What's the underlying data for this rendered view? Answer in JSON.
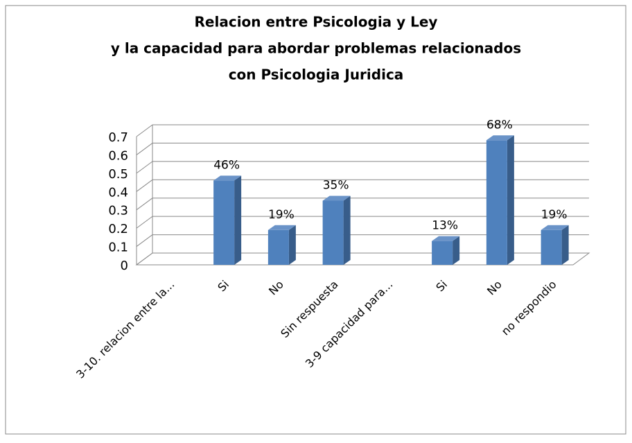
{
  "chart_data": {
    "type": "bar3d",
    "title": [
      "Relacion entre Psicologia y Ley",
      "y la capacidad para abordar problemas relacionados",
      "con Psicologia Juridica"
    ],
    "categories": [
      "3-10. relacion entre la...",
      "Si",
      "No",
      "Sin respuesta",
      "3-9 capacidad para...",
      "Si",
      "No",
      "no respondio"
    ],
    "values": [
      null,
      0.46,
      0.19,
      0.35,
      null,
      0.13,
      0.68,
      0.19
    ],
    "value_labels": [
      null,
      "46%",
      "19%",
      "35%",
      null,
      "13%",
      "68%",
      "19%"
    ],
    "color": "#4f81bd",
    "ylim": [
      0,
      0.7
    ],
    "yticks": [
      0,
      0.1,
      0.2,
      0.3,
      0.4,
      0.5,
      0.6,
      0.7
    ],
    "grid": true
  }
}
